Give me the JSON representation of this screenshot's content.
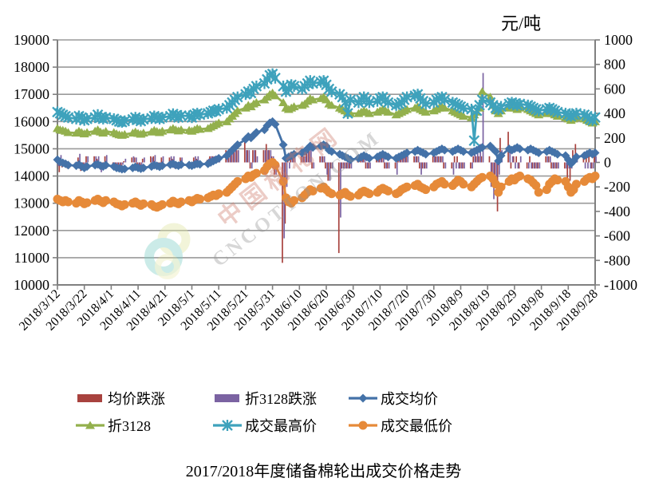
{
  "unit_label": "元/吨",
  "title": "2017/2018年度储备棉轮出成交价格走势",
  "watermark": {
    "line1": "中国棉花网",
    "line2": "CNCOTTON.COM"
  },
  "chart_data": {
    "type": "bar+line combo",
    "title": "2017/2018年度储备棉轮出成交价格走势",
    "y_right_unit": "元/吨",
    "grid": true,
    "legend_position": "bottom",
    "y_left": {
      "min": 10000,
      "max": 19000,
      "step": 1000
    },
    "y_right": {
      "min": -1000,
      "max": 1000,
      "step": 200
    },
    "x_axis": {
      "start_date": "2018/3/12",
      "tick_days": [
        0,
        10,
        20,
        30,
        40,
        50,
        60,
        70,
        80,
        90,
        100,
        110,
        120,
        130,
        140,
        150,
        160,
        170,
        180,
        190,
        200
      ],
      "tick_labels": [
        "2018/3/12",
        "2018/3/22",
        "2018/4/1",
        "2018/4/11",
        "2018/4/21",
        "2018/5/1",
        "2018/5/11",
        "2018/5/21",
        "2018/5/31",
        "2018/6/10",
        "2018/6/20",
        "2018/6/30",
        "2018/7/10",
        "2018/7/20",
        "2018/7/30",
        "2018/8/9",
        "2018/8/19",
        "2018/8/29",
        "2018/9/8",
        "2018/9/18",
        "2018/9/28"
      ]
    },
    "x_days": [
      0,
      1,
      2,
      3,
      4,
      7,
      8,
      9,
      10,
      11,
      14,
      15,
      16,
      17,
      18,
      21,
      22,
      23,
      24,
      25,
      28,
      29,
      30,
      31,
      32,
      35,
      36,
      37,
      38,
      39,
      42,
      43,
      44,
      45,
      46,
      49,
      50,
      51,
      52,
      53,
      56,
      57,
      58,
      59,
      60,
      63,
      64,
      65,
      66,
      67,
      70,
      71,
      72,
      73,
      74,
      77,
      78,
      79,
      80,
      81,
      84,
      85,
      86,
      87,
      88,
      91,
      92,
      93,
      94,
      95,
      98,
      99,
      100,
      101,
      102,
      105,
      106,
      107,
      108,
      109,
      112,
      113,
      114,
      115,
      116,
      119,
      120,
      121,
      122,
      123,
      126,
      127,
      128,
      129,
      130,
      133,
      134,
      135,
      136,
      137,
      140,
      141,
      142,
      143,
      144,
      147,
      148,
      149,
      150,
      151,
      154,
      155,
      156,
      157,
      158,
      161,
      162,
      163,
      164,
      165,
      168,
      169,
      170,
      171,
      172,
      175,
      176,
      177,
      178,
      179,
      182,
      183,
      184,
      185,
      186,
      189,
      190,
      191,
      192,
      193,
      196,
      197,
      198,
      199,
      200
    ],
    "series": [
      {
        "name": "均价跌涨",
        "type": "bar",
        "axis": "right",
        "color": "#A8423E",
        "values": [
          40,
          -80,
          -40,
          -30,
          -50,
          -20,
          40,
          -70,
          -50,
          50,
          50,
          30,
          -50,
          -30,
          50,
          -50,
          -50,
          -20,
          -30,
          10,
          40,
          40,
          -40,
          -30,
          30,
          50,
          50,
          -30,
          -30,
          40,
          40,
          30,
          -50,
          -20,
          40,
          -20,
          -20,
          40,
          30,
          -20,
          20,
          50,
          50,
          50,
          50,
          100,
          100,
          100,
          100,
          100,
          200,
          100,
          -50,
          100,
          100,
          100,
          150,
          100,
          50,
          -100,
          -820,
          -500,
          50,
          50,
          50,
          50,
          50,
          100,
          100,
          -50,
          50,
          50,
          -50,
          -150,
          -50,
          -740,
          -50,
          -50,
          -50,
          -50,
          50,
          50,
          50,
          -50,
          -50,
          50,
          50,
          50,
          -50,
          -50,
          -50,
          50,
          50,
          50,
          50,
          50,
          50,
          -50,
          -50,
          -50,
          50,
          50,
          50,
          50,
          -50,
          -50,
          50,
          50,
          -50,
          -50,
          -50,
          50,
          50,
          50,
          50,
          50,
          -100,
          -100,
          -400,
          200,
          250,
          -50,
          50,
          50,
          -50,
          -50,
          50,
          -50,
          -50,
          -50,
          50,
          50,
          -50,
          -50,
          -50,
          -50,
          -150,
          -150,
          100,
          150,
          50,
          50,
          50,
          -50,
          50
        ]
      },
      {
        "name": "折3128跌涨",
        "type": "bar",
        "axis": "right",
        "color": "#7B63A2",
        "values": [
          -30,
          60,
          -30,
          -30,
          -50,
          -20,
          70,
          -50,
          -50,
          50,
          50,
          50,
          -80,
          -40,
          60,
          -40,
          -50,
          -30,
          -20,
          30,
          50,
          40,
          -50,
          -30,
          40,
          40,
          60,
          -40,
          -40,
          50,
          50,
          50,
          -50,
          -40,
          40,
          -20,
          -30,
          50,
          50,
          -30,
          30,
          50,
          50,
          50,
          50,
          50,
          100,
          100,
          100,
          100,
          100,
          100,
          -50,
          100,
          50,
          100,
          100,
          100,
          50,
          -100,
          -620,
          -200,
          -50,
          50,
          50,
          50,
          50,
          100,
          100,
          -50,
          50,
          50,
          -100,
          -150,
          -50,
          -450,
          -50,
          -50,
          -50,
          -50,
          0,
          50,
          50,
          -50,
          -50,
          50,
          50,
          50,
          -50,
          -50,
          -100,
          50,
          50,
          50,
          50,
          50,
          50,
          -100,
          -50,
          -50,
          50,
          50,
          50,
          50,
          -50,
          -100,
          -50,
          -50,
          -50,
          -50,
          -50,
          100,
          100,
          150,
          730,
          -200,
          -300,
          -200,
          -100,
          100,
          100,
          50,
          -50,
          -50,
          50,
          -50,
          -50,
          -50,
          -50,
          -50,
          50,
          50,
          -50,
          -50,
          -50,
          -50,
          -50,
          -50,
          50,
          50,
          -50,
          -50,
          -50,
          -50,
          50
        ]
      },
      {
        "name": "成交均价",
        "type": "line",
        "marker": "diamond",
        "axis": "left",
        "color": "#4472A8",
        "values": [
          14600,
          14520,
          14480,
          14450,
          14400,
          14380,
          14420,
          14350,
          14300,
          14350,
          14400,
          14430,
          14380,
          14350,
          14400,
          14350,
          14300,
          14280,
          14250,
          14260,
          14300,
          14340,
          14300,
          14270,
          14300,
          14350,
          14400,
          14370,
          14340,
          14380,
          14420,
          14450,
          14400,
          14380,
          14420,
          14400,
          14380,
          14420,
          14450,
          14430,
          14450,
          14500,
          14550,
          14600,
          14650,
          14750,
          14850,
          14950,
          15050,
          15150,
          15350,
          15450,
          15400,
          15500,
          15600,
          15700,
          15850,
          15950,
          16000,
          15900,
          15150,
          14650,
          14700,
          14750,
          14800,
          14850,
          14900,
          15000,
          15100,
          15050,
          15100,
          15150,
          15100,
          14950,
          14900,
          14800,
          14750,
          14700,
          14650,
          14600,
          14650,
          14700,
          14750,
          14700,
          14650,
          14700,
          14750,
          14800,
          14750,
          14700,
          14650,
          14700,
          14750,
          14800,
          14850,
          14900,
          14950,
          14900,
          14850,
          14800,
          14850,
          14900,
          14950,
          15000,
          14950,
          14900,
          14950,
          15000,
          14950,
          14900,
          14850,
          14900,
          14950,
          15000,
          15050,
          15100,
          15000,
          14900,
          14550,
          14750,
          15000,
          14950,
          15000,
          15050,
          15000,
          14950,
          15000,
          14950,
          14900,
          14850,
          14900,
          14950,
          14900,
          14850,
          14800,
          14750,
          14600,
          14450,
          14550,
          14700,
          14750,
          14800,
          14850,
          14800,
          14850
        ]
      },
      {
        "name": "折3128",
        "type": "line",
        "marker": "triangle",
        "axis": "left",
        "color": "#93B04D",
        "values": [
          15750,
          15700,
          15680,
          15650,
          15600,
          15580,
          15650,
          15600,
          15550,
          15600,
          15650,
          15700,
          15620,
          15580,
          15640,
          15600,
          15550,
          15520,
          15500,
          15530,
          15580,
          15620,
          15570,
          15540,
          15580,
          15620,
          15680,
          15640,
          15600,
          15650,
          15700,
          15750,
          15700,
          15660,
          15700,
          15680,
          15650,
          15700,
          15750,
          15720,
          15750,
          15800,
          15850,
          15900,
          15950,
          16000,
          16100,
          16200,
          16300,
          16400,
          16500,
          16600,
          16550,
          16650,
          16700,
          16800,
          16900,
          17000,
          17050,
          16950,
          16700,
          16500,
          16450,
          16500,
          16550,
          16600,
          16650,
          16750,
          16850,
          16800,
          16850,
          16900,
          16800,
          16650,
          16600,
          16500,
          16450,
          16400,
          16350,
          16300,
          16300,
          16350,
          16400,
          16350,
          16300,
          16350,
          16400,
          16450,
          16400,
          16350,
          16250,
          16300,
          16350,
          16400,
          16450,
          16500,
          16550,
          16450,
          16400,
          16350,
          16400,
          16450,
          16500,
          16550,
          16500,
          16400,
          16350,
          16300,
          16250,
          16200,
          16150,
          16250,
          16350,
          16500,
          17100,
          16900,
          16600,
          16400,
          16300,
          16400,
          16500,
          16550,
          16500,
          16450,
          16500,
          16450,
          16400,
          16350,
          16300,
          16250,
          16300,
          16350,
          16300,
          16250,
          16200,
          16150,
          16100,
          16050,
          16100,
          16150,
          16100,
          16050,
          16000,
          15950,
          16000
        ]
      },
      {
        "name": "成交最高价",
        "type": "line",
        "marker": "star",
        "axis": "left",
        "color": "#3EA2BC",
        "values": [
          16350,
          16300,
          16250,
          16200,
          16150,
          16100,
          16200,
          16150,
          16050,
          16100,
          16150,
          16250,
          16150,
          16100,
          16150,
          16100,
          16050,
          16000,
          15980,
          16020,
          16080,
          16150,
          16080,
          16020,
          16080,
          16120,
          16200,
          16150,
          16100,
          16150,
          16200,
          16280,
          16220,
          16150,
          16220,
          16200,
          16150,
          16250,
          16300,
          16250,
          16300,
          16350,
          16400,
          16380,
          16450,
          16500,
          16600,
          16700,
          16800,
          16900,
          17000,
          17100,
          17050,
          17200,
          17300,
          17400,
          17550,
          17700,
          17750,
          17600,
          17300,
          17100,
          17200,
          17350,
          17300,
          17200,
          17300,
          17400,
          17500,
          17400,
          17450,
          17500,
          17350,
          17200,
          17100,
          17000,
          16900,
          16700,
          16300,
          16800,
          16700,
          16800,
          16900,
          16800,
          16700,
          16750,
          16850,
          16900,
          16800,
          16700,
          16600,
          16650,
          16700,
          16800,
          16900,
          16950,
          17000,
          16850,
          16750,
          16650,
          16700,
          16800,
          16850,
          16900,
          16800,
          16700,
          16650,
          16600,
          16550,
          16500,
          16450,
          15300,
          16400,
          16600,
          16800,
          16700,
          16600,
          16500,
          16450,
          16550,
          16650,
          16700,
          16650,
          16600,
          16650,
          16600,
          16550,
          16500,
          16450,
          16400,
          16450,
          16500,
          16450,
          16400,
          16350,
          16300,
          16250,
          16200,
          16250,
          16300,
          16250,
          16200,
          16100,
          16050,
          16150
        ]
      },
      {
        "name": "成交最低价",
        "type": "line",
        "marker": "circle",
        "axis": "left",
        "color": "#E68A39",
        "values": [
          13150,
          13100,
          13050,
          13100,
          13050,
          13000,
          13100,
          13050,
          12980,
          13020,
          13100,
          13150,
          13080,
          13020,
          13100,
          13050,
          12980,
          12950,
          12900,
          12950,
          13000,
          13050,
          12980,
          12920,
          12980,
          12950,
          12880,
          12850,
          12900,
          12950,
          13000,
          13080,
          13020,
          12980,
          13050,
          13100,
          13050,
          13120,
          13180,
          13150,
          13200,
          13250,
          13300,
          13280,
          13350,
          13400,
          13500,
          13600,
          13700,
          13800,
          13900,
          14000,
          13950,
          14050,
          14100,
          14200,
          14350,
          14450,
          14500,
          14400,
          13800,
          13200,
          13050,
          13000,
          13100,
          13200,
          13300,
          13400,
          13500,
          13450,
          13550,
          13600,
          13500,
          13400,
          13350,
          13300,
          13350,
          13400,
          13300,
          13250,
          13300,
          13400,
          13450,
          13400,
          13350,
          13400,
          13500,
          13550,
          13500,
          13450,
          13350,
          13400,
          13500,
          13550,
          13600,
          13650,
          13700,
          13600,
          13550,
          13500,
          13600,
          13700,
          13750,
          13800,
          13700,
          13650,
          13750,
          13850,
          13800,
          13700,
          13600,
          13700,
          13800,
          13900,
          13950,
          14000,
          13900,
          13700,
          13400,
          13600,
          13800,
          13900,
          13850,
          13950,
          14000,
          13900,
          13850,
          13750,
          13650,
          13400,
          13500,
          13700,
          13800,
          13900,
          13850,
          13800,
          13600,
          13400,
          13500,
          13700,
          13800,
          13900,
          13950,
          13900,
          14000
        ]
      }
    ]
  }
}
